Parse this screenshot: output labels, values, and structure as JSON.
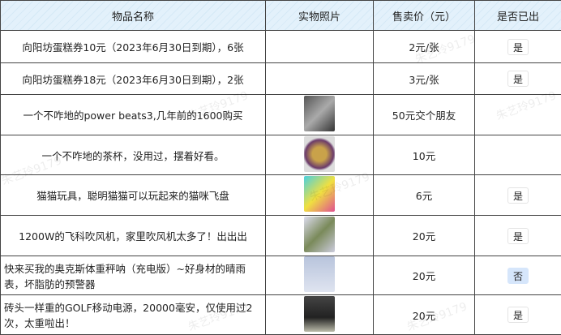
{
  "headers": [
    "物品名称",
    "实物照片",
    "售卖价（元）",
    "是否已出"
  ],
  "watermark": "朱艺玲9179",
  "rows": [
    {
      "name": "向阳坊蛋糕券10元（2023年6月30日到期），6张",
      "photo": "",
      "price": "2元/张",
      "sold": "是"
    },
    {
      "name": "向阳坊蛋糕券18元（2023年6月30日到期），2张",
      "photo": "",
      "price": "3元/张",
      "sold": "是"
    },
    {
      "name": "一个不咋地的power beats3,几年前的1600购买",
      "photo": "headphones-photo",
      "price": "50元交个朋友",
      "sold": ""
    },
    {
      "name": "一个不咋地的茶杯，没用过，摆着好看。",
      "photo": "teacup-photo",
      "price": "10元",
      "sold": ""
    },
    {
      "name": "猫猫玩具，聪明猫猫可以玩起来的猫咪飞盘",
      "photo": "cat-toy-photo",
      "price": "6元",
      "sold": "是"
    },
    {
      "name": "1200W的飞科吹风机，家里吹风机太多了！出出出",
      "photo": "hair-dryer-photo",
      "price": "20元",
      "sold": "是"
    },
    {
      "name": "快来买我的奥克斯体重秤呐（充电版）~好身材的晴雨表，坏脂肪的预警器",
      "photo": "scale-photo",
      "price": "20元",
      "sold": "否"
    },
    {
      "name": "砖头一样重的GOLF移动电源，20000毫安，仅使用过2次，太重啦出！",
      "photo": "power-bank-photo",
      "price": "20元",
      "sold": "是"
    }
  ]
}
